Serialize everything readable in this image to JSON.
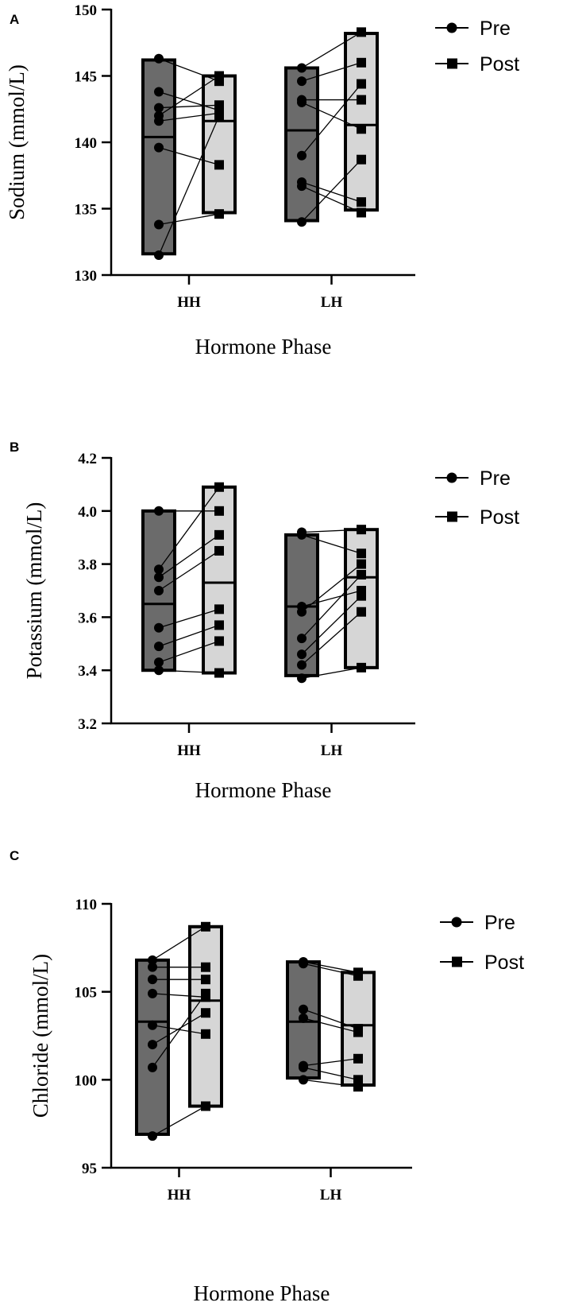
{
  "chart_data": [
    {
      "type": "floating-bar",
      "panel_label": "A",
      "ylabel": "Sodium (mmol/L)",
      "xlabel": "Hormone Phase",
      "ylim": [
        130,
        150
      ],
      "yticks": [
        "130",
        "135",
        "140",
        "145",
        "150"
      ],
      "categories": [
        "HH",
        "LH"
      ],
      "legend": [
        "Pre",
        "Post"
      ],
      "legend_position": "right",
      "groups": [
        {
          "category": "HH",
          "pre": {
            "min": 131.6,
            "max": 146.2,
            "mean": 140.4,
            "values": [
              146.3,
              143.8,
              142.6,
              142.0,
              141.6,
              139.6,
              133.8,
              131.5
            ]
          },
          "post": {
            "min": 134.7,
            "max": 145.0,
            "mean": 141.6,
            "values": [
              144.6,
              142.4,
              142.8,
              145.0,
              142.2,
              138.3,
              134.6,
              142.0
            ]
          }
        },
        {
          "category": "LH",
          "pre": {
            "min": 134.1,
            "max": 145.6,
            "mean": 140.9,
            "values": [
              145.6,
              144.6,
              143.2,
              143.0,
              139.0,
              137.0,
              136.7,
              134.0
            ]
          },
          "post": {
            "min": 134.9,
            "max": 148.2,
            "mean": 141.3,
            "values": [
              148.3,
              146.0,
              143.2,
              141.0,
              144.4,
              135.5,
              134.7,
              138.7
            ]
          }
        }
      ]
    },
    {
      "type": "floating-bar",
      "panel_label": "B",
      "ylabel": "Potassium (mmol/L)",
      "xlabel": "Hormone Phase",
      "ylim": [
        3.2,
        4.2
      ],
      "yticks": [
        "3.2",
        "3.4",
        "3.6",
        "3.8",
        "4.0",
        "4.2"
      ],
      "categories": [
        "HH",
        "LH"
      ],
      "legend": [
        "Pre",
        "Post"
      ],
      "legend_position": "right",
      "groups": [
        {
          "category": "HH",
          "pre": {
            "min": 3.4,
            "max": 4.0,
            "mean": 3.65,
            "values": [
              4.0,
              3.78,
              3.75,
              3.7,
              3.56,
              3.49,
              3.43,
              3.4
            ]
          },
          "post": {
            "min": 3.39,
            "max": 4.09,
            "mean": 3.73,
            "values": [
              4.0,
              4.09,
              3.91,
              3.85,
              3.63,
              3.57,
              3.51,
              3.39
            ]
          }
        },
        {
          "category": "LH",
          "pre": {
            "min": 3.38,
            "max": 3.91,
            "mean": 3.64,
            "values": [
              3.92,
              3.91,
              3.62,
              3.52,
              3.64,
              3.46,
              3.42,
              3.37
            ]
          },
          "post": {
            "min": 3.41,
            "max": 3.93,
            "mean": 3.75,
            "values": [
              3.93,
              3.84,
              3.8,
              3.76,
              3.7,
              3.68,
              3.62,
              3.41
            ]
          }
        }
      ]
    },
    {
      "type": "floating-bar",
      "panel_label": "C",
      "ylabel": "Chloride (mmol/L)",
      "xlabel": "Hormone Phase",
      "ylim": [
        95,
        110
      ],
      "yticks": [
        "95",
        "100",
        "105",
        "110"
      ],
      "categories": [
        "HH",
        "LH"
      ],
      "legend": [
        "Pre",
        "Post"
      ],
      "legend_position": "right",
      "groups": [
        {
          "category": "HH",
          "pre": {
            "min": 96.9,
            "max": 106.8,
            "mean": 103.3,
            "values": [
              106.8,
              106.4,
              105.7,
              104.9,
              103.1,
              102.0,
              100.7,
              96.8
            ]
          },
          "post": {
            "min": 98.5,
            "max": 108.7,
            "mean": 104.5,
            "values": [
              108.7,
              106.4,
              105.7,
              104.7,
              102.6,
              103.8,
              104.9,
              98.5
            ]
          }
        },
        {
          "category": "LH",
          "pre": {
            "min": 100.1,
            "max": 106.7,
            "mean": 103.3,
            "values": [
              106.7,
              106.6,
              104.0,
              103.5,
              100.8,
              100.7,
              100.0
            ]
          },
          "post": {
            "min": 99.7,
            "max": 106.1,
            "mean": 103.1,
            "values": [
              106.1,
              105.9,
              102.9,
              102.7,
              101.2,
              100.0,
              99.6
            ]
          }
        }
      ]
    }
  ]
}
